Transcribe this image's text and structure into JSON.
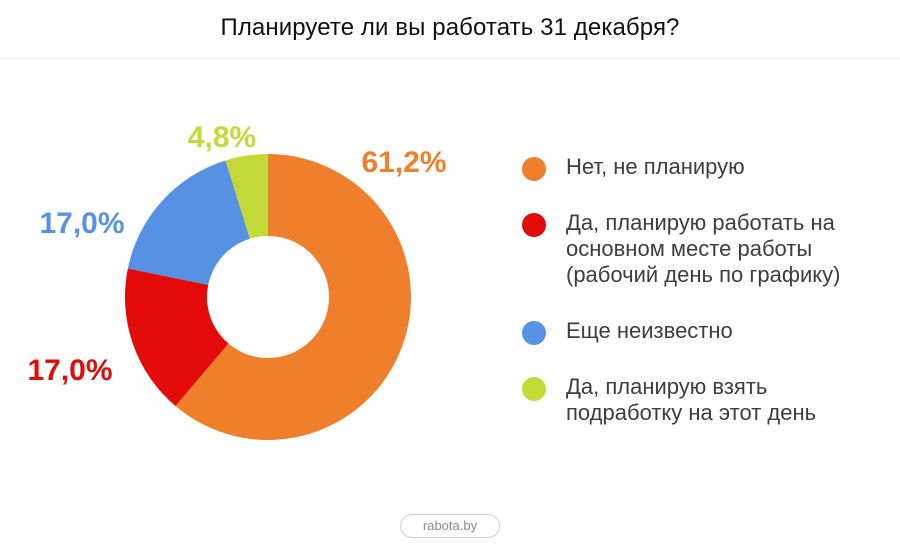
{
  "title": "Планируете ли вы работать 31 декабря?",
  "source": "rabota.by",
  "chart_data": {
    "type": "pie",
    "title": "Планируете ли вы работать 31 декабря?",
    "donut": true,
    "legend_position": "right",
    "unit": "%",
    "slices": [
      {
        "label": "Нет, не планирую",
        "value": 61.2,
        "display": "61,2%",
        "color": "#F07F2C"
      },
      {
        "label": "Да, планирую работать на\nосновном месте работы\n(рабочий день по графику)",
        "value": 17.0,
        "display": "17,0%",
        "color": "#E30A0A"
      },
      {
        "label": "Еще неизвестно",
        "value": 17.0,
        "display": "17,0%",
        "color": "#5691E3"
      },
      {
        "label": "Да, планирую взять\nподработку на этот день",
        "value": 4.8,
        "display": "4,8%",
        "color": "#C3D938"
      }
    ]
  }
}
